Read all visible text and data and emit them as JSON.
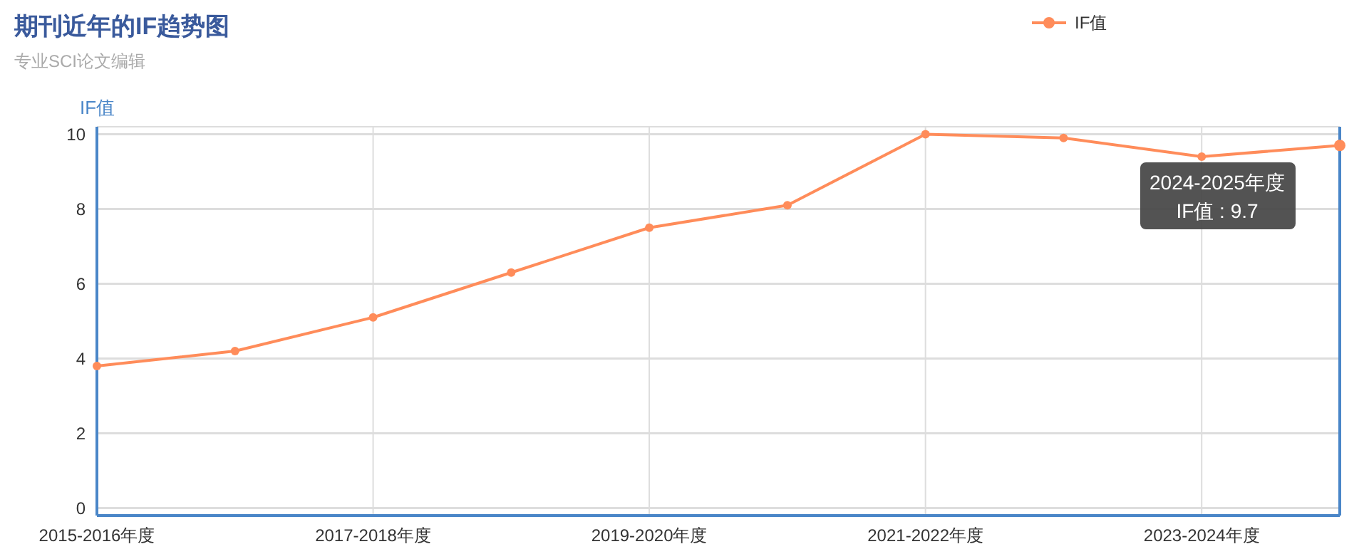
{
  "chart_data": {
    "type": "line",
    "title": "期刊近年的IF趋势图",
    "subtitle": "专业SCI论文编辑",
    "ylabel": "IF值",
    "categories": [
      "2015-2016年度",
      null,
      "2017-2018年度",
      null,
      "2019-2020年度",
      null,
      "2021-2022年度",
      null,
      "2023-2024年度",
      null
    ],
    "series": [
      {
        "name": "IF值",
        "color": "#ff8c5a",
        "values": [
          3.8,
          4.2,
          5.1,
          6.3,
          7.5,
          8.1,
          10.0,
          9.9,
          9.4,
          9.7
        ]
      }
    ],
    "ylim": [
      -0.2,
      10.2
    ],
    "yticks": [
      0,
      2,
      4,
      6,
      8,
      10
    ],
    "grid": true,
    "legend": "top right",
    "marker": "circle",
    "annotations": [
      "2024-2025年度\nIF值 : 9.7"
    ]
  }
}
